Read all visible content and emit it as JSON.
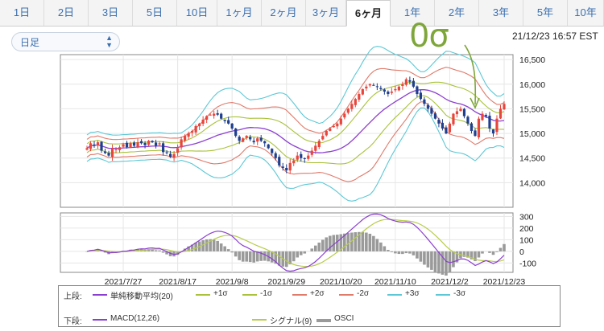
{
  "tabs": [
    {
      "label": "1日"
    },
    {
      "label": "2日"
    },
    {
      "label": "3日"
    },
    {
      "label": "5日"
    },
    {
      "label": "10日"
    },
    {
      "label": "1ヶ月"
    },
    {
      "label": "2ヶ月"
    },
    {
      "label": "3ヶ月"
    },
    {
      "label": "6ヶ月"
    },
    {
      "label": "1年"
    },
    {
      "label": "2年"
    },
    {
      "label": "3年"
    },
    {
      "label": "5年"
    },
    {
      "label": "10年"
    }
  ],
  "active_tab": "6ヶ月",
  "period_select": {
    "value": "日足"
  },
  "timestamp": "21/12/23 16:57 EST",
  "annotation": "0σ",
  "colors": {
    "up": "#e8453c",
    "down": "#1f3f8f",
    "sma": "#8b3fd0",
    "s1": "#a9c23a",
    "s2": "#e07a6a",
    "s3": "#5cc8d6",
    "macd": "#8b3fd0",
    "signal": "#b8cc4a",
    "osci": "#9a9a9a",
    "annotation": "#7fa63a"
  },
  "legend": {
    "upper_label": "上段:",
    "lower_label": "下段:",
    "upper_items": [
      {
        "label": "単純移動平均(20)",
        "color": "#8b3fd0"
      },
      {
        "label": "+1σ",
        "color": "#a9c23a"
      },
      {
        "label": "-1σ",
        "color": "#a9c23a"
      },
      {
        "label": "+2σ",
        "color": "#e07a6a"
      },
      {
        "label": "-2σ",
        "color": "#e07a6a"
      },
      {
        "label": "+3σ",
        "color": "#5cc8d6"
      },
      {
        "label": "-3σ",
        "color": "#5cc8d6"
      }
    ],
    "lower_items": [
      {
        "label": "MACD(12,26)",
        "color": "#8b3fd0"
      },
      {
        "label": "シグナル(9)",
        "color": "#b8cc4a"
      },
      {
        "label": "OSCI",
        "color": "#9a9a9a"
      }
    ]
  },
  "chart_data": [
    {
      "type": "candlestick",
      "ylim": [
        13500,
        16600
      ],
      "y_ticks": [
        14000,
        14500,
        15000,
        15500,
        16000,
        16500
      ],
      "y_tick_labels": [
        "14,000",
        "14,500",
        "15,000",
        "15,500",
        "16,000",
        "16,500"
      ],
      "x_tick_labels": [
        "2021/7/27",
        "2021/8/17",
        "2021/9/8",
        "2021/9/29",
        "2021/10/20",
        "2021/11/10",
        "2021/12/2",
        "2021/12/23"
      ],
      "x_tick_index": [
        10,
        25,
        40,
        55,
        70,
        85,
        100,
        115
      ],
      "close_path": [
        14700,
        14800,
        14760,
        14820,
        14650,
        14600,
        14550,
        14700,
        14680,
        14720,
        14780,
        14720,
        14800,
        14750,
        14820,
        14800,
        14760,
        14850,
        14820,
        14750,
        14800,
        14620,
        14600,
        14520,
        14580,
        14700,
        14880,
        14950,
        15000,
        15050,
        15150,
        15200,
        15280,
        15350,
        15380,
        15400,
        15380,
        15300,
        15250,
        15200,
        15100,
        14950,
        14850,
        14900,
        14950,
        14880,
        14820,
        14900,
        14850,
        14800,
        14700,
        14600,
        14500,
        14350,
        14300,
        14250,
        14400,
        14450,
        14550,
        14500,
        14480,
        14550,
        14650,
        14750,
        14850,
        14950,
        15050,
        15100,
        15150,
        15200,
        15300,
        15400,
        15500,
        15600,
        15700,
        15800,
        15900,
        15950,
        16000,
        15980,
        15950,
        15900,
        15850,
        15800,
        15850,
        15900,
        15950,
        16000,
        16100,
        16050,
        15950,
        15800,
        15700,
        15600,
        15500,
        15400,
        15300,
        15200,
        15100,
        15000,
        15200,
        15400,
        15450,
        15500,
        15350,
        15200,
        15050,
        14950,
        15300,
        15400,
        15350,
        15100,
        15000,
        15300,
        15500,
        15600
      ],
      "sma_period": 20,
      "bands": [
        "+1σ",
        "-1σ",
        "+2σ",
        "-2σ",
        "+3σ",
        "-3σ"
      ]
    },
    {
      "type": "line",
      "ylim": [
        -180,
        330
      ],
      "y_ticks": [
        -100,
        0,
        100,
        200,
        300
      ],
      "y_tick_labels": [
        "-100",
        "0",
        "100",
        "200",
        "300"
      ],
      "series": [
        {
          "name": "MACD(12,26)"
        },
        {
          "name": "シグナル(9)"
        },
        {
          "name": "OSCI"
        }
      ]
    }
  ]
}
